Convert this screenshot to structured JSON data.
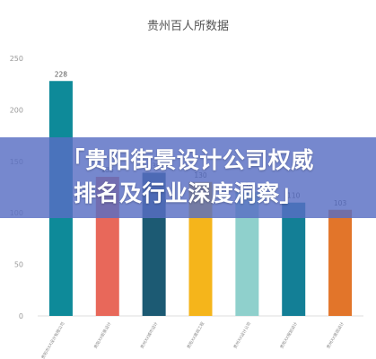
{
  "chart_data": {
    "type": "bar",
    "title": "贵州百人所数据",
    "categories": [
      "贵阳市XX设计有限公司",
      "贵阳XX街景设计",
      "贵州XX城市设计",
      "贵阳XX景观工程",
      "贵州XX设计公司",
      "贵阳XX规划设计",
      "贵州XX景观设计"
    ],
    "values": [
      228,
      135,
      139,
      130,
      120,
      110,
      103
    ],
    "value_labels": [
      "228",
      "135",
      "139",
      "130",
      "120",
      "110",
      "103"
    ],
    "colors": [
      "#0e8a99",
      "#e8685a",
      "#1c5a73",
      "#f5b51b",
      "#8fd0cc",
      "#137f96",
      "#e2752a"
    ],
    "ylim": [
      0,
      250
    ],
    "yticks": [
      0,
      50,
      100,
      150,
      200,
      250
    ],
    "grid": false,
    "legend": "none"
  },
  "overlay": {
    "title_line1": "「贵阳街景设计公司权威",
    "title_line2": "排名及行业深度洞察」"
  }
}
